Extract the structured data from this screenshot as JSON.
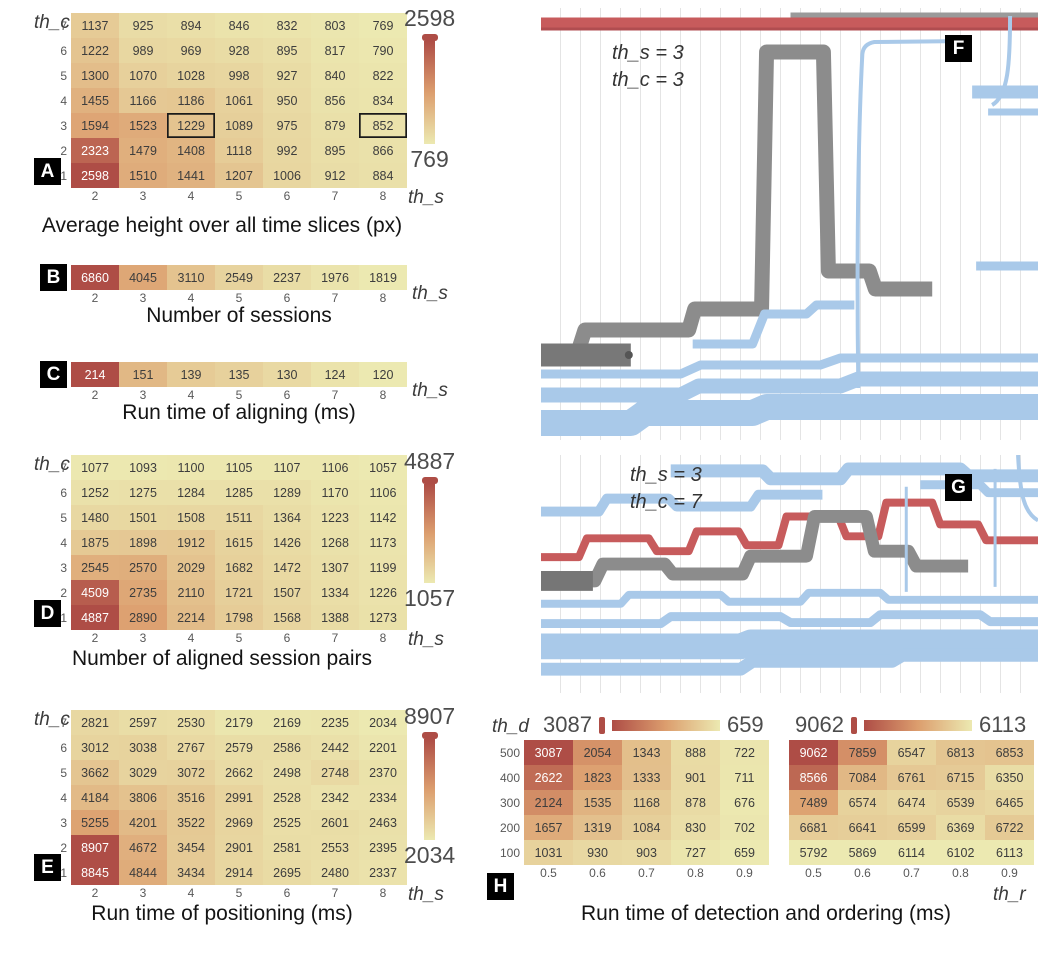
{
  "figure": {
    "axis_labels": {
      "th_c": "th_c",
      "th_s": "th_s",
      "th_d": "th_d",
      "th_r": "th_r"
    }
  },
  "colors": {
    "heat_high": "#ae4d46",
    "heat_mid": "#dc9e6e",
    "heat_low": "#ece9b1",
    "stream_blue": "#a9c9e9",
    "stream_gray": "#8c8c8c",
    "stream_red": "#c75b5c"
  },
  "panels": {
    "A": {
      "letter": "A",
      "caption": "Average height over all time slices (px)"
    },
    "B": {
      "letter": "B",
      "caption": "Number of sessions"
    },
    "C": {
      "letter": "C",
      "caption": "Run time of aligning (ms)"
    },
    "D": {
      "letter": "D",
      "caption": "Number of aligned session pairs"
    },
    "E": {
      "letter": "E",
      "caption": "Run time of positioning (ms)"
    },
    "F": {
      "letter": "F",
      "annotation": [
        "th_s = 3",
        "th_c = 3"
      ]
    },
    "G": {
      "letter": "G",
      "annotation": [
        "th_s = 3",
        "th_c = 7"
      ]
    },
    "H": {
      "letter": "H",
      "caption": "Run time of detection and ordering (ms)"
    }
  },
  "chart_data": [
    {
      "panel": "A",
      "type": "heatmap",
      "title": "Average height over all time slices (px)",
      "xlabel": "th_s",
      "ylabel": "th_c",
      "x": [
        2,
        3,
        4,
        5,
        6,
        7,
        8
      ],
      "y": [
        7,
        6,
        5,
        4,
        3,
        2,
        1
      ],
      "colorbar": {
        "max": 2598,
        "min": 769
      },
      "highlighted": [
        [
          4,
          2
        ],
        [
          4,
          6
        ]
      ],
      "values": [
        [
          1137,
          925,
          894,
          846,
          832,
          803,
          769
        ],
        [
          1222,
          989,
          969,
          928,
          895,
          817,
          790
        ],
        [
          1300,
          1070,
          1028,
          998,
          927,
          840,
          822
        ],
        [
          1455,
          1166,
          1186,
          1061,
          950,
          856,
          834
        ],
        [
          1594,
          1523,
          1229,
          1089,
          975,
          879,
          852
        ],
        [
          2323,
          1479,
          1408,
          1118,
          992,
          895,
          866
        ],
        [
          2598,
          1510,
          1441,
          1207,
          1006,
          912,
          884
        ]
      ]
    },
    {
      "panel": "B",
      "type": "heatmap",
      "title": "Number of sessions",
      "xlabel": "th_s",
      "x": [
        2,
        3,
        4,
        5,
        6,
        7,
        8
      ],
      "values": [
        [
          6860,
          4045,
          3110,
          2549,
          2237,
          1976,
          1819
        ]
      ]
    },
    {
      "panel": "C",
      "type": "heatmap",
      "title": "Run time of aligning (ms)",
      "xlabel": "th_s",
      "x": [
        2,
        3,
        4,
        5,
        6,
        7,
        8
      ],
      "values": [
        [
          214,
          151,
          139,
          135,
          130,
          124,
          120
        ]
      ]
    },
    {
      "panel": "D",
      "type": "heatmap",
      "title": "Number of aligned session pairs",
      "xlabel": "th_s",
      "ylabel": "th_c",
      "x": [
        2,
        3,
        4,
        5,
        6,
        7,
        8
      ],
      "y": [
        7,
        6,
        5,
        4,
        3,
        2,
        1
      ],
      "colorbar": {
        "max": 4887,
        "min": 1057
      },
      "values": [
        [
          1077,
          1093,
          1100,
          1105,
          1107,
          1106,
          1057
        ],
        [
          1252,
          1275,
          1284,
          1285,
          1289,
          1170,
          1106
        ],
        [
          1480,
          1501,
          1508,
          1511,
          1364,
          1223,
          1142
        ],
        [
          1875,
          1898,
          1912,
          1615,
          1426,
          1268,
          1173
        ],
        [
          2545,
          2570,
          2029,
          1682,
          1472,
          1307,
          1199
        ],
        [
          4509,
          2735,
          2110,
          1721,
          1507,
          1334,
          1226
        ],
        [
          4887,
          2890,
          2214,
          1798,
          1568,
          1388,
          1273
        ]
      ]
    },
    {
      "panel": "E",
      "type": "heatmap",
      "title": "Run time of positioning (ms)",
      "xlabel": "th_s",
      "ylabel": "th_c",
      "x": [
        2,
        3,
        4,
        5,
        6,
        7,
        8
      ],
      "y": [
        7,
        6,
        5,
        4,
        3,
        2,
        1
      ],
      "colorbar": {
        "max": 8907,
        "min": 2034
      },
      "values": [
        [
          2821,
          2597,
          2530,
          2179,
          2169,
          2235,
          2034
        ],
        [
          3012,
          3038,
          2767,
          2579,
          2586,
          2442,
          2201
        ],
        [
          3662,
          3029,
          3072,
          2662,
          2498,
          2748,
          2370
        ],
        [
          4184,
          3806,
          3516,
          2991,
          2528,
          2342,
          2334
        ],
        [
          5255,
          4201,
          3522,
          2969,
          2525,
          2601,
          2463
        ],
        [
          8907,
          4672,
          3454,
          2901,
          2581,
          2553,
          2395
        ],
        [
          8845,
          4844,
          3434,
          2914,
          2695,
          2480,
          2337
        ]
      ]
    },
    {
      "panel": "F",
      "type": "area",
      "annotation": [
        "th_s = 3",
        "th_c = 3"
      ]
    },
    {
      "panel": "G",
      "type": "area",
      "annotation": [
        "th_s = 3",
        "th_c = 7"
      ]
    },
    {
      "panel": "H",
      "type": "heatmap",
      "side": "left",
      "title": "Run time of detection and ordering (ms)",
      "xlabel": "th_r",
      "ylabel": "th_d",
      "x": [
        0.5,
        0.6,
        0.7,
        0.8,
        0.9
      ],
      "y": [
        500,
        400,
        300,
        200,
        100
      ],
      "colorbar": {
        "max": 3087,
        "min": 659
      },
      "values": [
        [
          3087,
          2054,
          1343,
          888,
          722
        ],
        [
          2622,
          1823,
          1333,
          901,
          711
        ],
        [
          2124,
          1535,
          1168,
          878,
          676
        ],
        [
          1657,
          1319,
          1084,
          830,
          702
        ],
        [
          1031,
          930,
          903,
          727,
          659
        ]
      ]
    },
    {
      "panel": "H",
      "type": "heatmap",
      "side": "right",
      "title": "Run time of detection and ordering (ms)",
      "xlabel": "th_r",
      "x": [
        0.5,
        0.6,
        0.7,
        0.8,
        0.9
      ],
      "colorbar": {
        "max": 9062,
        "min": 6113
      },
      "values": [
        [
          9062,
          7859,
          6547,
          6813,
          6853
        ],
        [
          8566,
          7084,
          6761,
          6715,
          6350
        ],
        [
          7489,
          6574,
          6474,
          6539,
          6465
        ],
        [
          6681,
          6641,
          6599,
          6369,
          6722
        ],
        [
          5792,
          5869,
          6114,
          6102,
          6113
        ]
      ]
    }
  ]
}
